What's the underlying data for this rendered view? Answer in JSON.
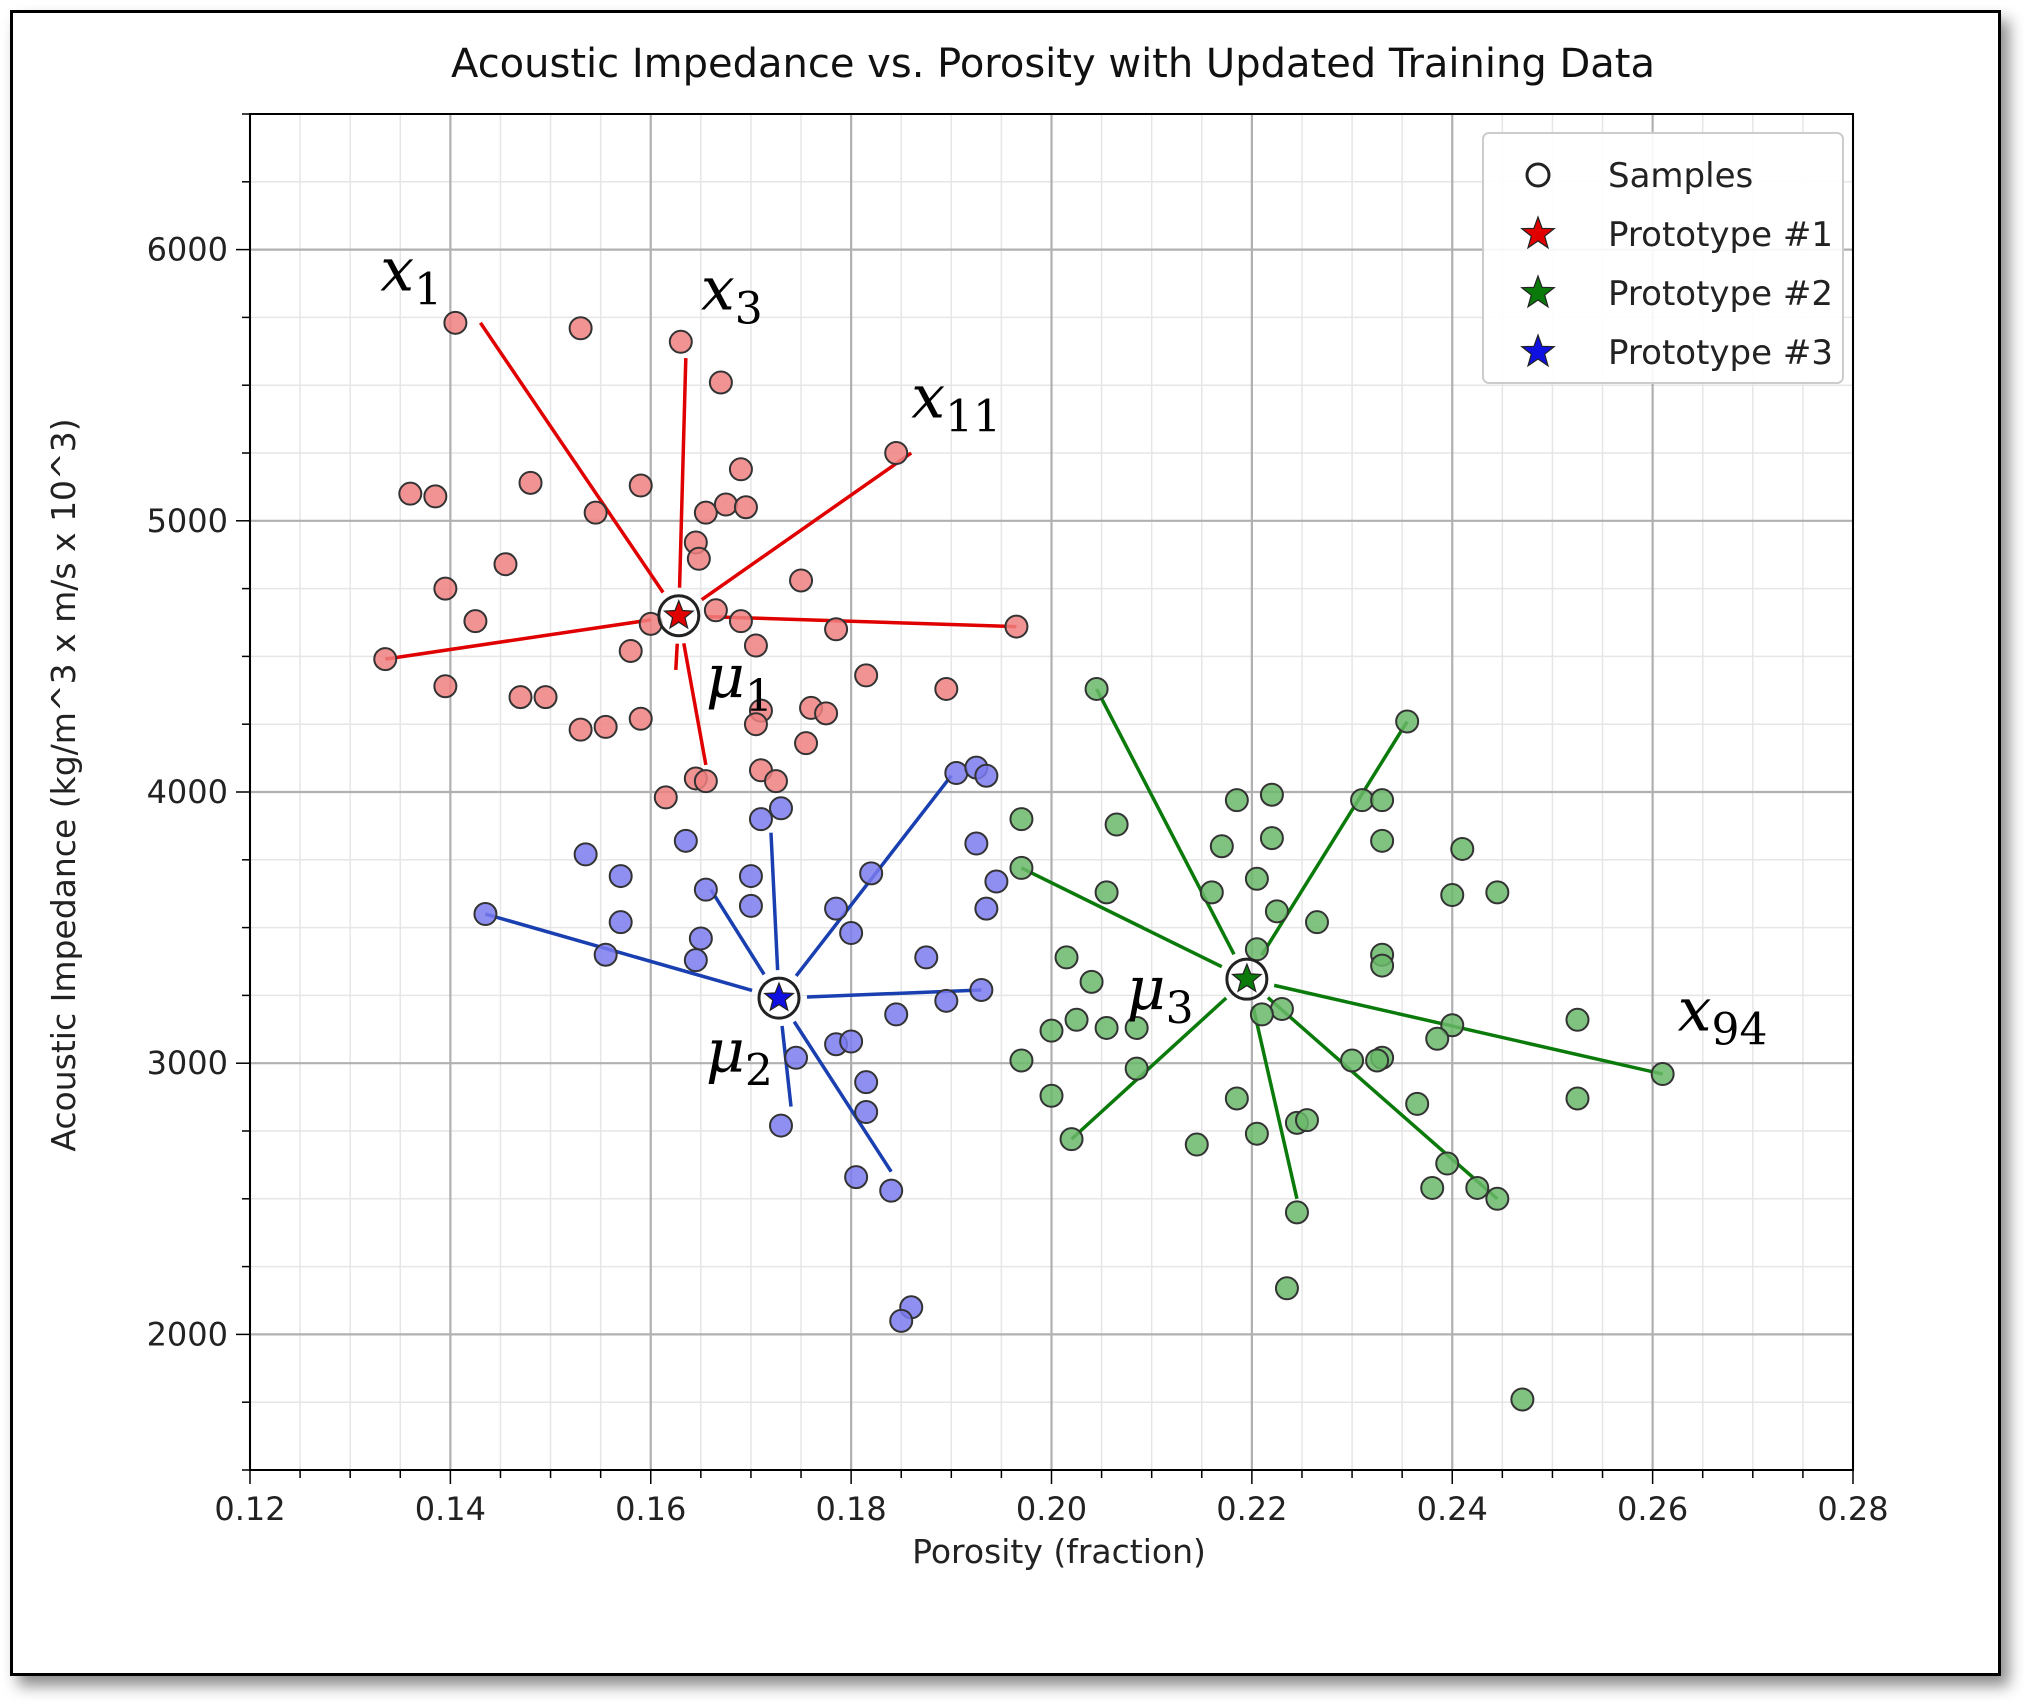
{
  "chart_data": {
    "type": "scatter",
    "title": "Acoustic Impedance vs. Porosity with Updated Training Data",
    "xlabel": "Porosity (fraction)",
    "ylabel": "Acoustic Impedance (kg/m^3 x m/s x 10^3)",
    "xlim": [
      0.12,
      0.28
    ],
    "ylim": [
      1500,
      6500
    ],
    "xticks": [
      "0.12",
      "0.14",
      "0.16",
      "0.18",
      "0.20",
      "0.22",
      "0.24",
      "0.26",
      "0.28"
    ],
    "yticks": [
      "2000",
      "3000",
      "4000",
      "5000",
      "6000"
    ],
    "grid": true,
    "legend_position": "top-right",
    "legend": [
      {
        "label": "Samples",
        "marker": "circle",
        "color": "#ffffff"
      },
      {
        "label": "Prototype #1",
        "marker": "star",
        "color": "#e00000"
      },
      {
        "label": "Prototype #2",
        "marker": "star",
        "color": "#0a7a0a"
      },
      {
        "label": "Prototype #3",
        "marker": "star",
        "color": "#1010e0"
      }
    ],
    "series": [
      {
        "color": "#f08080",
        "points": [
          [
            0.1405,
            5730
          ],
          [
            0.153,
            5710
          ],
          [
            0.163,
            5660
          ],
          [
            0.167,
            5510
          ],
          [
            0.136,
            5100
          ],
          [
            0.1385,
            5090
          ],
          [
            0.148,
            5140
          ],
          [
            0.159,
            5130
          ],
          [
            0.169,
            5190
          ],
          [
            0.1545,
            5030
          ],
          [
            0.1655,
            5030
          ],
          [
            0.1675,
            5060
          ],
          [
            0.1695,
            5050
          ],
          [
            0.1845,
            5250
          ],
          [
            0.1455,
            4840
          ],
          [
            0.1645,
            4920
          ],
          [
            0.1648,
            4860
          ],
          [
            0.1395,
            4750
          ],
          [
            0.175,
            4780
          ],
          [
            0.1425,
            4630
          ],
          [
            0.16,
            4620
          ],
          [
            0.1665,
            4670
          ],
          [
            0.169,
            4630
          ],
          [
            0.1785,
            4600
          ],
          [
            0.1965,
            4610
          ],
          [
            0.1335,
            4490
          ],
          [
            0.158,
            4520
          ],
          [
            0.1705,
            4540
          ],
          [
            0.1395,
            4390
          ],
          [
            0.147,
            4350
          ],
          [
            0.1495,
            4350
          ],
          [
            0.1815,
            4430
          ],
          [
            0.1895,
            4380
          ],
          [
            0.153,
            4230
          ],
          [
            0.1555,
            4240
          ],
          [
            0.159,
            4270
          ],
          [
            0.171,
            4300
          ],
          [
            0.1705,
            4250
          ],
          [
            0.176,
            4310
          ],
          [
            0.1775,
            4290
          ],
          [
            0.1755,
            4180
          ],
          [
            0.1645,
            4050
          ],
          [
            0.1655,
            4040
          ],
          [
            0.171,
            4080
          ],
          [
            0.1725,
            4040
          ],
          [
            0.1615,
            3980
          ]
        ]
      },
      {
        "color": "#7b7bf0",
        "points": [
          [
            0.1905,
            4070
          ],
          [
            0.1925,
            4090
          ],
          [
            0.1935,
            4060
          ],
          [
            0.171,
            3900
          ],
          [
            0.173,
            3940
          ],
          [
            0.1535,
            3770
          ],
          [
            0.1635,
            3820
          ],
          [
            0.157,
            3690
          ],
          [
            0.182,
            3700
          ],
          [
            0.1925,
            3810
          ],
          [
            0.1435,
            3550
          ],
          [
            0.157,
            3520
          ],
          [
            0.1655,
            3640
          ],
          [
            0.17,
            3690
          ],
          [
            0.17,
            3580
          ],
          [
            0.1785,
            3570
          ],
          [
            0.1945,
            3670
          ],
          [
            0.165,
            3460
          ],
          [
            0.18,
            3480
          ],
          [
            0.1935,
            3570
          ],
          [
            0.1555,
            3400
          ],
          [
            0.1645,
            3380
          ],
          [
            0.1875,
            3390
          ],
          [
            0.1845,
            3180
          ],
          [
            0.1895,
            3230
          ],
          [
            0.193,
            3270
          ],
          [
            0.1785,
            3070
          ],
          [
            0.18,
            3080
          ],
          [
            0.1745,
            3020
          ],
          [
            0.1815,
            2930
          ],
          [
            0.1815,
            2820
          ],
          [
            0.173,
            2770
          ],
          [
            0.1805,
            2580
          ],
          [
            0.184,
            2530
          ],
          [
            0.186,
            2100
          ],
          [
            0.185,
            2050
          ]
        ]
      },
      {
        "color": "#6ab86a",
        "points": [
          [
            0.2045,
            4380
          ],
          [
            0.2355,
            4260
          ],
          [
            0.2185,
            3970
          ],
          [
            0.222,
            3990
          ],
          [
            0.231,
            3970
          ],
          [
            0.233,
            3970
          ],
          [
            0.197,
            3900
          ],
          [
            0.2065,
            3880
          ],
          [
            0.222,
            3830
          ],
          [
            0.233,
            3820
          ],
          [
            0.217,
            3800
          ],
          [
            0.241,
            3790
          ],
          [
            0.197,
            3720
          ],
          [
            0.2055,
            3630
          ],
          [
            0.216,
            3630
          ],
          [
            0.2205,
            3680
          ],
          [
            0.24,
            3620
          ],
          [
            0.2445,
            3630
          ],
          [
            0.2225,
            3560
          ],
          [
            0.2265,
            3520
          ],
          [
            0.2015,
            3390
          ],
          [
            0.204,
            3300
          ],
          [
            0.2205,
            3420
          ],
          [
            0.233,
            3400
          ],
          [
            0.233,
            3360
          ],
          [
            0.2,
            3120
          ],
          [
            0.2025,
            3160
          ],
          [
            0.2055,
            3130
          ],
          [
            0.2085,
            3130
          ],
          [
            0.223,
            3200
          ],
          [
            0.221,
            3180
          ],
          [
            0.24,
            3140
          ],
          [
            0.2385,
            3090
          ],
          [
            0.2525,
            3160
          ],
          [
            0.197,
            3010
          ],
          [
            0.2085,
            2980
          ],
          [
            0.23,
            3010
          ],
          [
            0.233,
            3020
          ],
          [
            0.2325,
            3010
          ],
          [
            0.261,
            2960
          ],
          [
            0.2,
            2880
          ],
          [
            0.202,
            2720
          ],
          [
            0.2145,
            2700
          ],
          [
            0.2185,
            2870
          ],
          [
            0.2205,
            2740
          ],
          [
            0.2245,
            2780
          ],
          [
            0.2255,
            2790
          ],
          [
            0.2365,
            2850
          ],
          [
            0.2525,
            2870
          ],
          [
            0.238,
            2540
          ],
          [
            0.2395,
            2630
          ],
          [
            0.2425,
            2540
          ],
          [
            0.2445,
            2500
          ],
          [
            0.2245,
            2450
          ],
          [
            0.2235,
            2170
          ],
          [
            0.247,
            1760
          ]
        ]
      }
    ],
    "prototypes": [
      {
        "name": "Prototype #1",
        "x": 0.1628,
        "y": 4650,
        "color": "#e00000",
        "label_sub": "1"
      },
      {
        "name": "Prototype #3",
        "x": 0.1728,
        "y": 3240,
        "color": "#1010e0",
        "label_sub": "2"
      },
      {
        "name": "Prototype #2",
        "x": 0.2195,
        "y": 3310,
        "color": "#0a7a0a",
        "label_sub": "3"
      }
    ],
    "distance_lines": [
      {
        "color": "#e00000",
        "from": 0,
        "to": [
          [
            0.143,
            5730
          ],
          [
            0.1635,
            5600
          ],
          [
            0.186,
            5250
          ],
          [
            0.1335,
            4490
          ],
          [
            0.1965,
            4610
          ],
          [
            0.1625,
            4450
          ],
          [
            0.1655,
            4100
          ]
        ]
      },
      {
        "color": "#1a3fb0",
        "from": 1,
        "to": [
          [
            0.1435,
            3550
          ],
          [
            0.166,
            3640
          ],
          [
            0.172,
            3850
          ],
          [
            0.19,
            4060
          ],
          [
            0.193,
            3270
          ],
          [
            0.174,
            2840
          ],
          [
            0.184,
            2600
          ]
        ]
      },
      {
        "color": "#0a7a0a",
        "from": 2,
        "to": [
          [
            0.2045,
            4380
          ],
          [
            0.197,
            3720
          ],
          [
            0.2355,
            4260
          ],
          [
            0.261,
            2960
          ],
          [
            0.2445,
            2500
          ],
          [
            0.2245,
            2500
          ],
          [
            0.202,
            2720
          ]
        ]
      }
    ],
    "annotations": [
      {
        "base": "x",
        "sub": "1",
        "x": 0.133,
        "y": 5850
      },
      {
        "base": "x",
        "sub": "3",
        "x": 0.165,
        "y": 5780
      },
      {
        "base": "x",
        "sub": "11",
        "x": 0.186,
        "y": 5380
      },
      {
        "base": "x",
        "sub": "94",
        "x": 0.2625,
        "y": 3120
      },
      {
        "base": "μ",
        "sub": "1",
        "x": 0.1655,
        "y": 4350
      },
      {
        "base": "μ",
        "sub": "2",
        "x": 0.1655,
        "y": 2970
      },
      {
        "base": "μ",
        "sub": "3",
        "x": 0.2075,
        "y": 3200
      }
    ]
  }
}
